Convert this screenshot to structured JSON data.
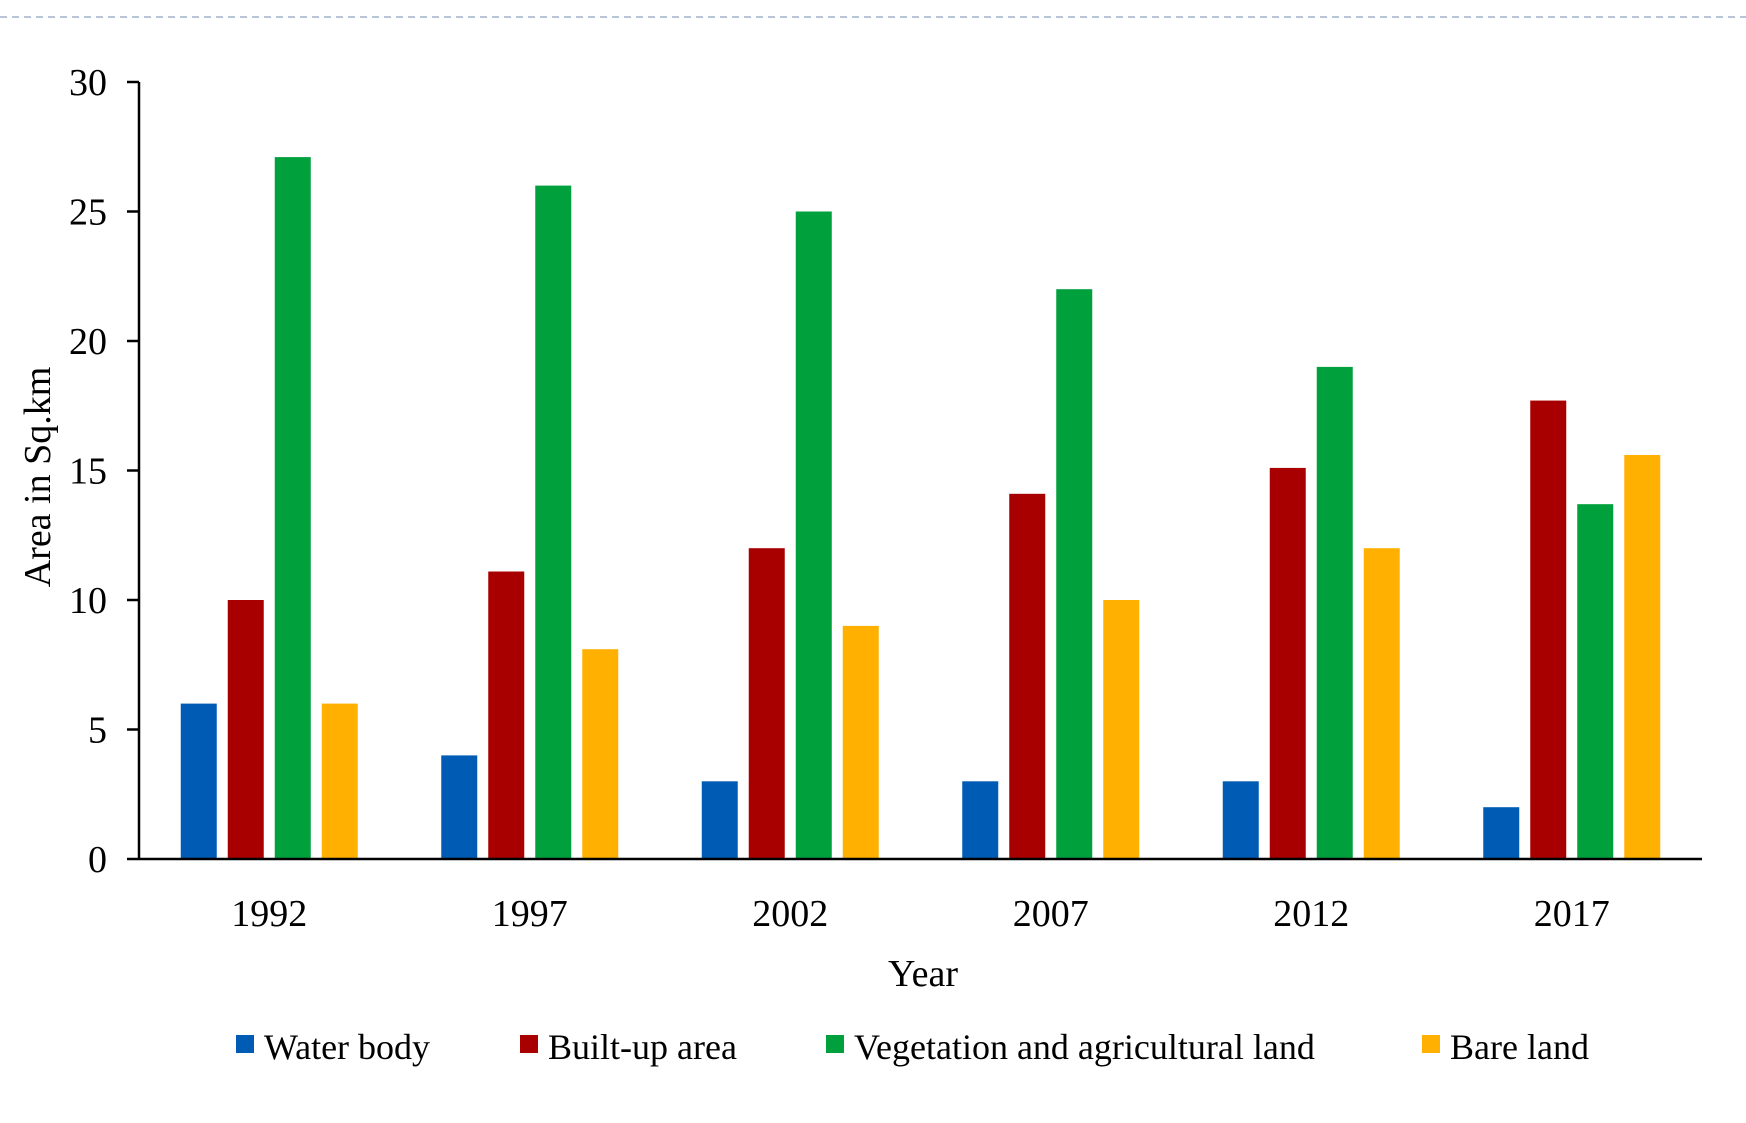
{
  "chart_data": {
    "type": "bar",
    "title": "",
    "xlabel": "Year",
    "ylabel": "Area in Sq.km",
    "ylim": [
      0,
      30
    ],
    "yticks": [
      0,
      5,
      10,
      15,
      20,
      25,
      30
    ],
    "categories": [
      "1992",
      "1997",
      "2002",
      "2007",
      "2012",
      "2017"
    ],
    "series": [
      {
        "name": "Water body",
        "color": "#005bb5",
        "values": [
          6,
          4,
          3,
          3,
          3,
          2
        ]
      },
      {
        "name": "Built-up area",
        "color": "#a80000",
        "values": [
          10,
          11.1,
          12,
          14.1,
          15.1,
          17.7
        ]
      },
      {
        "name": "Vegetation and agricultural land",
        "color": "#00a03c",
        "values": [
          27.1,
          26,
          25,
          22,
          19,
          13.7
        ]
      },
      {
        "name": "Bare land",
        "color": "#ffb000",
        "values": [
          6,
          8.1,
          9,
          10,
          12,
          15.6
        ]
      }
    ],
    "grid": false,
    "legend_position": "bottom"
  }
}
